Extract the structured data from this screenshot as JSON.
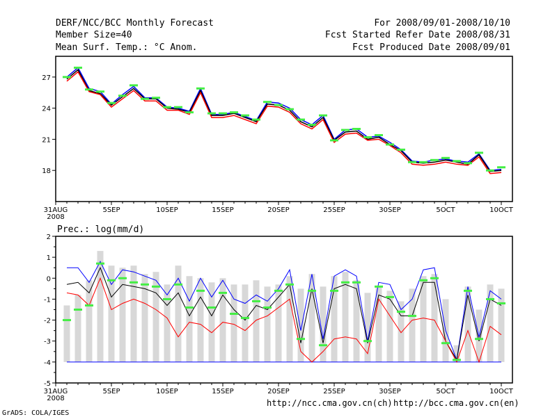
{
  "header": {
    "title": "DERF/NCC/BCC Monthly Forecast",
    "member_size": "Member Size=40",
    "variable": "Mean Surf. Temp.: °C Anom.",
    "period": "For 2008/09/01-2008/10/10",
    "refer_date": "Fcst Started Refer Date 2008/08/31",
    "produced_date": "Fcst Produced Date 2008/09/01"
  },
  "footer": {
    "grads": "GrADS: COLA/IGES",
    "url_ncc": "http://ncc.cma.gov.cn(ch)",
    "url_bcc": "http://bcc.cma.gov.cn(en)"
  },
  "colors": {
    "upper": "#0000ff",
    "mean": "#000000",
    "lower": "#ff0000",
    "obs": "#44ee44",
    "bar": "#d8d8d8"
  },
  "chart_data": [
    {
      "type": "line",
      "title": "Mean Surf. Temp.",
      "xlabel": "",
      "ylabel": "°C",
      "x_tick_labels": [
        "31AUG",
        "5SEP",
        "10SEP",
        "15SEP",
        "20SEP",
        "25SEP",
        "30SEP",
        "5OCT",
        "10OCT"
      ],
      "x_tick_year": "2008",
      "xlim": [
        0,
        41
      ],
      "ylim": [
        15,
        29
      ],
      "y_ticks": [
        18,
        21,
        24,
        27
      ],
      "x": [
        1,
        2,
        3,
        4,
        5,
        6,
        7,
        8,
        9,
        10,
        11,
        12,
        13,
        14,
        15,
        16,
        17,
        18,
        19,
        20,
        21,
        22,
        23,
        24,
        25,
        26,
        27,
        28,
        29,
        30,
        31,
        32,
        33,
        34,
        35,
        36,
        37,
        38,
        39,
        40
      ],
      "series": [
        {
          "name": "upper",
          "values": [
            27.0,
            27.9,
            25.9,
            25.6,
            24.4,
            25.3,
            26.1,
            25.0,
            25.0,
            24.1,
            24.0,
            23.7,
            25.9,
            23.4,
            23.4,
            23.6,
            23.2,
            22.8,
            24.6,
            24.5,
            24.0,
            22.9,
            22.4,
            23.3,
            21.0,
            21.9,
            22.0,
            21.2,
            21.3,
            20.7,
            20.0,
            18.9,
            18.8,
            19.0,
            19.1,
            18.9,
            18.8,
            19.6,
            18.0,
            18.1
          ]
        },
        {
          "name": "mean",
          "values": [
            26.8,
            27.7,
            25.7,
            25.4,
            24.3,
            25.1,
            25.9,
            24.9,
            24.9,
            24.0,
            23.9,
            23.6,
            25.7,
            23.3,
            23.3,
            23.5,
            23.1,
            22.7,
            24.4,
            24.3,
            23.8,
            22.7,
            22.2,
            23.1,
            20.9,
            21.7,
            21.8,
            21.0,
            21.2,
            20.5,
            19.9,
            18.8,
            18.7,
            18.8,
            19.0,
            18.8,
            18.6,
            19.5,
            17.9,
            18.0
          ]
        },
        {
          "name": "lower",
          "values": [
            26.6,
            27.5,
            25.6,
            25.3,
            24.1,
            24.9,
            25.7,
            24.7,
            24.7,
            23.8,
            23.8,
            23.4,
            25.5,
            23.1,
            23.1,
            23.3,
            22.9,
            22.5,
            24.2,
            24.1,
            23.6,
            22.5,
            22.0,
            22.9,
            20.7,
            21.5,
            21.6,
            20.9,
            21.0,
            20.4,
            19.7,
            18.6,
            18.5,
            18.6,
            18.8,
            18.6,
            18.5,
            19.3,
            17.7,
            17.8
          ]
        },
        {
          "name": "observed",
          "values": [
            27.0,
            27.9,
            25.8,
            25.6,
            24.5,
            25.2,
            26.2,
            24.9,
            25.0,
            24.1,
            24.1,
            23.6,
            25.9,
            23.5,
            23.5,
            23.6,
            23.3,
            22.9,
            24.6,
            24.3,
            23.9,
            22.9,
            22.4,
            23.3,
            20.9,
            21.9,
            22.0,
            21.2,
            21.4,
            20.5,
            20.0,
            18.8,
            18.8,
            19.0,
            19.2,
            18.9,
            18.7,
            19.7,
            18.0,
            18.3
          ]
        }
      ]
    },
    {
      "type": "bar",
      "title": "Prec.: log(mm/d)",
      "xlabel": "",
      "ylabel": "log(mm/d)",
      "x_tick_labels": [
        "31AUG",
        "5SEP",
        "10SEP",
        "15SEP",
        "20SEP",
        "25SEP",
        "30SEP",
        "5OCT",
        "10OCT"
      ],
      "x_tick_year": "2008",
      "xlim": [
        0,
        41
      ],
      "ylim": [
        -5,
        2
      ],
      "y_ticks": [
        -5,
        -4,
        -3,
        -2,
        -1,
        0,
        1,
        2
      ],
      "x": [
        1,
        2,
        3,
        4,
        5,
        6,
        7,
        8,
        9,
        10,
        11,
        12,
        13,
        14,
        15,
        16,
        17,
        18,
        19,
        20,
        21,
        22,
        23,
        24,
        25,
        26,
        27,
        28,
        29,
        30,
        31,
        32,
        33,
        34,
        35,
        36,
        37,
        38,
        39,
        40
      ],
      "series": [
        {
          "name": "ensemble-range",
          "values": [
            [
              -4,
              -1.3
            ],
            [
              -4,
              -0.8
            ],
            [
              -4,
              -0.1
            ],
            [
              -4,
              1.3
            ],
            [
              -4,
              0.6
            ],
            [
              -4,
              0.5
            ],
            [
              -4,
              0.6
            ],
            [
              -4,
              0.2
            ],
            [
              -4,
              0.3
            ],
            [
              -4,
              -0.3
            ],
            [
              -4,
              0.6
            ],
            [
              -4,
              0.1
            ],
            [
              -4,
              0.0
            ],
            [
              -4,
              -0.2
            ],
            [
              -4,
              0.0
            ],
            [
              -4,
              -0.3
            ],
            [
              -4,
              -0.3
            ],
            [
              -4,
              -0.1
            ],
            [
              -4,
              -0.4
            ],
            [
              -4,
              -0.3
            ],
            [
              -4,
              0.1
            ],
            [
              -4,
              -0.5
            ],
            [
              -4,
              0.2
            ],
            [
              -4,
              -0.4
            ],
            [
              -4,
              0.1
            ],
            [
              -4,
              0.3
            ],
            [
              -4,
              -0.1
            ],
            [
              -4,
              -0.7
            ],
            [
              -4,
              -0.4
            ],
            [
              -4,
              -0.6
            ],
            [
              -4,
              -1.1
            ],
            [
              -4,
              -0.5
            ],
            [
              -4,
              0.1
            ],
            [
              -4,
              0.2
            ],
            [
              -4,
              -1.0
            ],
            [
              -4,
              -3.2
            ],
            [
              -4,
              -0.4
            ],
            [
              -4,
              -1.5
            ],
            [
              -4,
              -0.3
            ],
            [
              -4,
              -0.5
            ]
          ]
        },
        {
          "name": "upper",
          "values": [
            0.5,
            0.5,
            -0.2,
            0.8,
            -0.3,
            0.4,
            0.3,
            0.1,
            -0.1,
            -0.8,
            0.0,
            -1.1,
            0.0,
            -0.9,
            -0.1,
            -1.0,
            -1.2,
            -0.8,
            -1.1,
            -0.5,
            0.4,
            -2.5,
            0.2,
            -2.9,
            0.1,
            0.4,
            0.1,
            -3.0,
            -0.2,
            -0.3,
            -1.5,
            -1.0,
            0.4,
            0.5,
            -2.5,
            -3.9,
            -0.4,
            -2.8,
            -0.6,
            -1.0
          ]
        },
        {
          "name": "mean",
          "values": [
            -0.3,
            -0.2,
            -0.7,
            0.5,
            -0.9,
            -0.3,
            -0.4,
            -0.5,
            -0.7,
            -1.3,
            -0.7,
            -1.8,
            -0.9,
            -1.8,
            -0.8,
            -1.5,
            -2.0,
            -1.3,
            -1.5,
            -0.9,
            -0.3,
            -3.1,
            -0.5,
            -3.1,
            -0.5,
            -0.3,
            -0.5,
            -3.1,
            -0.8,
            -1.0,
            -1.8,
            -1.8,
            -0.2,
            -0.2,
            -3.0,
            -3.9,
            -0.8,
            -3.0,
            -1.0,
            -1.3
          ]
        },
        {
          "name": "lower",
          "values": [
            -0.7,
            -0.8,
            -1.3,
            0.0,
            -1.5,
            -1.2,
            -1.0,
            -1.2,
            -1.5,
            -1.9,
            -2.8,
            -2.1,
            -2.2,
            -2.6,
            -2.1,
            -2.2,
            -2.5,
            -2.0,
            -1.8,
            -1.4,
            -1.0,
            -3.5,
            -4.0,
            -3.5,
            -2.9,
            -2.8,
            -2.9,
            -3.6,
            -1.0,
            -1.8,
            -2.6,
            -2.0,
            -1.9,
            -2.0,
            -3.0,
            -4.0,
            -2.5,
            -4.0,
            -2.3,
            -2.7
          ]
        },
        {
          "name": "observed",
          "values": [
            -2.0,
            -1.5,
            -1.3,
            0.7,
            -0.1,
            0.0,
            -0.2,
            -0.3,
            -0.4,
            -1.0,
            -0.3,
            -1.4,
            -0.6,
            -1.4,
            -0.7,
            -1.7,
            -1.9,
            -1.1,
            -1.4,
            -0.6,
            -0.3,
            -2.9,
            -0.6,
            -3.2,
            -0.6,
            -0.2,
            -0.2,
            -3.0,
            -0.4,
            -0.9,
            -1.6,
            -1.8,
            -0.1,
            0.0,
            -3.1,
            -3.9,
            -0.6,
            -2.9,
            -1.0,
            -1.2
          ]
        }
      ]
    }
  ]
}
